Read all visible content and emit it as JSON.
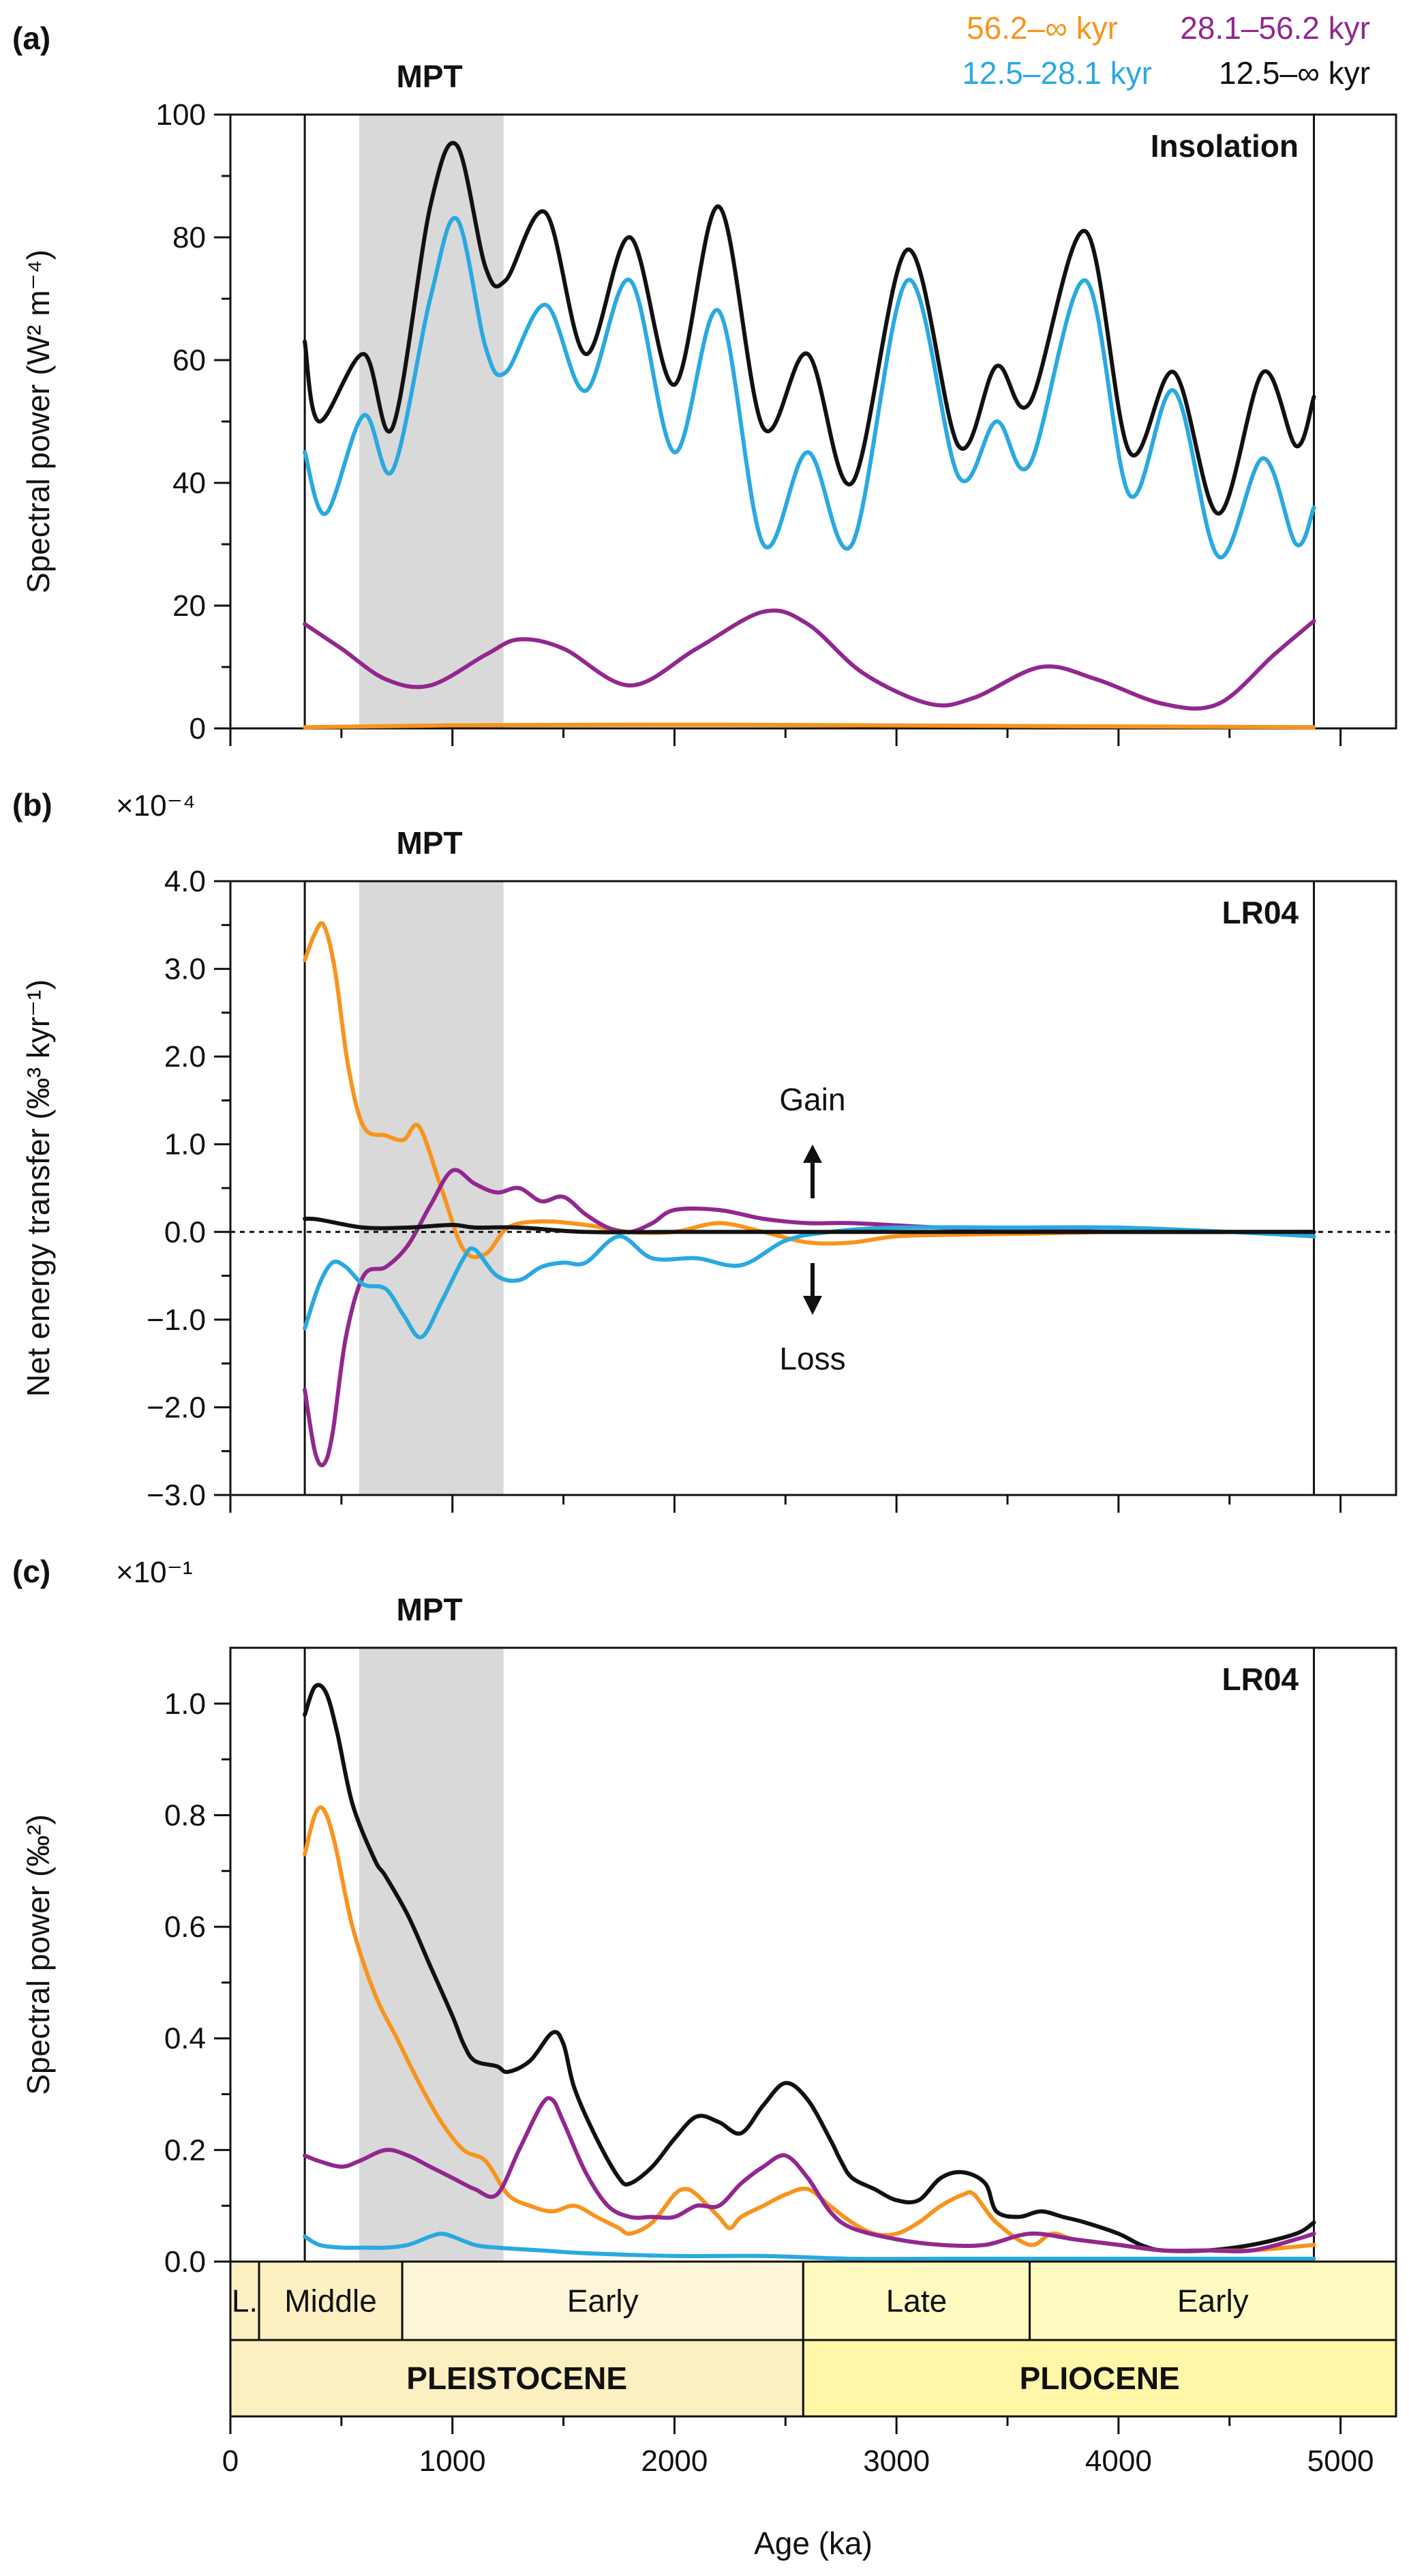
{
  "colors": {
    "orange": "#F7941D",
    "blue": "#29A9E0",
    "purple": "#92278F",
    "black": "#111111",
    "mpt_shade": "#D9D9D9",
    "pleistocene": "#FCEFC2",
    "pleistocene_early": "#FDF5D8",
    "pliocene": "#FFF6A8",
    "pliocene_sub": "#FFFBC0"
  },
  "legend": [
    {
      "label": "56.2–∞ kyr",
      "color": "orange"
    },
    {
      "label": "28.1–56.2 kyr",
      "color": "purple"
    },
    {
      "label": "12.5–28.1 kyr",
      "color": "blue"
    },
    {
      "label": "12.5–∞ kyr",
      "color": "black"
    }
  ],
  "mpt": {
    "label": "MPT",
    "start_ka": 580,
    "end_ka": 1230
  },
  "record_range_ka": [
    335,
    4880
  ],
  "x_axis": {
    "label": "Age (ka)",
    "range": [
      0,
      5250
    ],
    "ticks": [
      0,
      1000,
      2000,
      3000,
      4000,
      5000
    ]
  },
  "timescale": {
    "epochs": [
      {
        "label": "PLEISTOCENE",
        "start": 0,
        "end": 2580
      },
      {
        "label": "PLIOCENE",
        "start": 2580,
        "end": 5250
      }
    ],
    "ages": [
      {
        "label": "L.",
        "start": 0,
        "end": 129
      },
      {
        "label": "Middle",
        "start": 129,
        "end": 774
      },
      {
        "label": "Early",
        "start": 774,
        "end": 2580
      },
      {
        "label": "Late",
        "start": 2580,
        "end": 3600
      },
      {
        "label": "Early",
        "start": 3600,
        "end": 5250
      }
    ]
  },
  "chart_data": [
    {
      "type": "line",
      "panel": "(a)",
      "title": "Insolation",
      "ylabel": "Spectral power (W² m⁻⁴)",
      "ylim": [
        0,
        100
      ],
      "yticks": [
        0,
        20,
        40,
        60,
        80,
        100
      ],
      "ytick_labels": [
        "0",
        "20",
        "40",
        "60",
        "80",
        "100"
      ],
      "scale_label": "",
      "series": [
        {
          "name": "12.5–∞ kyr",
          "color": "black",
          "x": [
            335,
            400,
            600,
            730,
            900,
            1020,
            1150,
            1240,
            1420,
            1600,
            1800,
            2000,
            2200,
            2400,
            2600,
            2800,
            3050,
            3280,
            3450,
            3600,
            3850,
            4050,
            4250,
            4450,
            4650,
            4800,
            4880
          ],
          "y": [
            63,
            50,
            61,
            49,
            85,
            95,
            75,
            73,
            84,
            61,
            80,
            56,
            85,
            49,
            61,
            40,
            78,
            46,
            59,
            53,
            81,
            45,
            58,
            35,
            58,
            46,
            54
          ]
        },
        {
          "name": "12.5–28.1 kyr",
          "color": "blue",
          "x": [
            335,
            430,
            600,
            730,
            900,
            1020,
            1150,
            1240,
            1420,
            1600,
            1800,
            2000,
            2200,
            2400,
            2600,
            2800,
            3050,
            3280,
            3450,
            3600,
            3850,
            4050,
            4250,
            4450,
            4650,
            4800,
            4880
          ],
          "y": [
            45,
            35,
            51,
            42,
            70,
            83,
            62,
            58,
            69,
            55,
            73,
            45,
            68,
            30,
            45,
            30,
            73,
            41,
            50,
            43,
            73,
            38,
            55,
            28,
            44,
            30,
            36
          ]
        },
        {
          "name": "28.1–56.2 kyr",
          "color": "purple",
          "x": [
            335,
            500,
            700,
            900,
            1150,
            1300,
            1500,
            1800,
            2100,
            2400,
            2600,
            2850,
            3150,
            3350,
            3650,
            3900,
            4200,
            4450,
            4700,
            4880
          ],
          "y": [
            17,
            13,
            8,
            7,
            12,
            14.5,
            13,
            7,
            13,
            19,
            17,
            9,
            4,
            5,
            10,
            8,
            4,
            4,
            12,
            17.5
          ]
        },
        {
          "name": "56.2–∞ kyr",
          "color": "orange",
          "x": [
            335,
            1000,
            2200,
            3500,
            4880
          ],
          "y": [
            0.2,
            0.5,
            0.6,
            0.4,
            0.2
          ]
        }
      ]
    },
    {
      "type": "line",
      "panel": "(b)",
      "title": "LR04",
      "ylabel": "Net energy transfer (‰³ kyr⁻¹)",
      "ylim": [
        -3.0,
        4.0
      ],
      "yticks": [
        -3,
        -2,
        -1,
        0,
        1,
        2,
        3,
        4
      ],
      "ytick_labels": [
        "−3.0",
        "−2.0",
        "−1.0",
        "0.0",
        "1.0",
        "2.0",
        "3.0",
        "4.0"
      ],
      "scale_label": "×10⁻⁴",
      "gain_label": "Gain",
      "loss_label": "Loss",
      "series": [
        {
          "name": "56.2–∞ kyr",
          "color": "orange",
          "x": [
            335,
            380,
            420,
            470,
            530,
            600,
            700,
            780,
            850,
            950,
            1050,
            1150,
            1250,
            1400,
            1600,
            1800,
            2000,
            2200,
            2400,
            2600,
            2800,
            3000,
            3300,
            3600,
            4000,
            4400,
            4880
          ],
          "y": [
            3.1,
            3.4,
            3.5,
            3.0,
            1.9,
            1.2,
            1.1,
            1.05,
            1.2,
            0.5,
            -0.2,
            -0.25,
            0.05,
            0.12,
            0.08,
            0.0,
            0.0,
            0.1,
            0.0,
            -0.12,
            -0.12,
            -0.05,
            -0.03,
            -0.02,
            0.0,
            0.0,
            0.0
          ]
        },
        {
          "name": "28.1–56.2 kyr",
          "color": "purple",
          "x": [
            335,
            380,
            420,
            460,
            520,
            600,
            700,
            800,
            900,
            1000,
            1100,
            1200,
            1300,
            1400,
            1500,
            1600,
            1700,
            1800,
            1900,
            2000,
            2200,
            2400,
            2600,
            2800,
            3200,
            3600,
            4000,
            4880
          ],
          "y": [
            -1.8,
            -2.5,
            -2.65,
            -2.3,
            -1.2,
            -0.5,
            -0.4,
            -0.15,
            0.3,
            0.7,
            0.55,
            0.45,
            0.5,
            0.35,
            0.4,
            0.2,
            0.05,
            0.0,
            0.1,
            0.25,
            0.25,
            0.15,
            0.1,
            0.1,
            0.05,
            0.03,
            0.0,
            0.0
          ]
        },
        {
          "name": "12.5–28.1 kyr",
          "color": "blue",
          "x": [
            335,
            400,
            460,
            520,
            600,
            700,
            780,
            860,
            950,
            1050,
            1100,
            1200,
            1300,
            1400,
            1500,
            1600,
            1750,
            1900,
            2100,
            2300,
            2500,
            2700,
            3000,
            3500,
            4000,
            4500,
            4880
          ],
          "y": [
            -1.1,
            -0.6,
            -0.35,
            -0.4,
            -0.6,
            -0.65,
            -0.95,
            -1.2,
            -0.8,
            -0.3,
            -0.2,
            -0.5,
            -0.55,
            -0.4,
            -0.35,
            -0.35,
            -0.05,
            -0.3,
            -0.3,
            -0.38,
            -0.1,
            0.0,
            0.05,
            0.05,
            0.05,
            0.0,
            -0.05
          ]
        },
        {
          "name": "12.5–∞ kyr",
          "color": "black",
          "x": [
            335,
            400,
            600,
            800,
            1000,
            1100,
            1300,
            1600,
            2000,
            2400,
            2800,
            3200,
            4000,
            4880
          ],
          "y": [
            0.15,
            0.14,
            0.05,
            0.05,
            0.08,
            0.05,
            0.05,
            0.0,
            0.0,
            0.0,
            0.0,
            0.0,
            0.0,
            0.0
          ]
        }
      ]
    },
    {
      "type": "line",
      "panel": "(c)",
      "title": "LR04",
      "ylabel": "Spectral power (‰²)",
      "ylim": [
        0,
        1.1
      ],
      "yticks": [
        0,
        0.2,
        0.4,
        0.6,
        0.8,
        1.0
      ],
      "ytick_labels": [
        "0.0",
        "0.2",
        "0.4",
        "0.6",
        "0.8",
        "1.0"
      ],
      "scale_label": "×10⁻¹",
      "series": [
        {
          "name": "12.5–∞ kyr",
          "color": "black",
          "x": [
            335,
            380,
            430,
            480,
            550,
            650,
            700,
            800,
            900,
            1000,
            1050,
            1100,
            1200,
            1250,
            1350,
            1450,
            1500,
            1550,
            1650,
            1750,
            1800,
            1900,
            2000,
            2100,
            2200,
            2300,
            2400,
            2500,
            2600,
            2700,
            2750,
            2800,
            2900,
            3000,
            3100,
            3200,
            3300,
            3400,
            3450,
            3550,
            3650,
            3750,
            3850,
            4000,
            4100,
            4200,
            4400,
            4600,
            4800,
            4880
          ],
          "y": [
            0.98,
            1.03,
            1.02,
            0.95,
            0.82,
            0.72,
            0.69,
            0.62,
            0.53,
            0.44,
            0.39,
            0.36,
            0.35,
            0.34,
            0.36,
            0.41,
            0.39,
            0.31,
            0.22,
            0.15,
            0.14,
            0.17,
            0.22,
            0.26,
            0.25,
            0.23,
            0.28,
            0.32,
            0.29,
            0.22,
            0.18,
            0.15,
            0.13,
            0.11,
            0.11,
            0.15,
            0.16,
            0.14,
            0.09,
            0.08,
            0.09,
            0.08,
            0.07,
            0.05,
            0.03,
            0.02,
            0.02,
            0.03,
            0.05,
            0.07
          ]
        },
        {
          "name": "56.2–∞ kyr",
          "color": "orange",
          "x": [
            335,
            380,
            420,
            470,
            550,
            650,
            750,
            850,
            950,
            1050,
            1150,
            1250,
            1350,
            1450,
            1550,
            1650,
            1750,
            1800,
            1900,
            2000,
            2050,
            2100,
            2200,
            2250,
            2300,
            2400,
            2500,
            2600,
            2700,
            2800,
            2900,
            3000,
            3100,
            3200,
            3300,
            3350,
            3450,
            3600,
            3700,
            3800,
            4000,
            4200,
            4400,
            4600,
            4880
          ],
          "y": [
            0.73,
            0.8,
            0.81,
            0.75,
            0.6,
            0.48,
            0.4,
            0.32,
            0.25,
            0.2,
            0.18,
            0.12,
            0.1,
            0.09,
            0.1,
            0.08,
            0.06,
            0.05,
            0.07,
            0.12,
            0.13,
            0.12,
            0.08,
            0.06,
            0.08,
            0.1,
            0.12,
            0.13,
            0.1,
            0.07,
            0.05,
            0.05,
            0.07,
            0.1,
            0.12,
            0.12,
            0.07,
            0.03,
            0.05,
            0.04,
            0.03,
            0.02,
            0.02,
            0.02,
            0.03
          ]
        },
        {
          "name": "28.1–56.2 kyr",
          "color": "purple",
          "x": [
            335,
            400,
            500,
            580,
            700,
            800,
            900,
            1000,
            1100,
            1200,
            1300,
            1400,
            1450,
            1500,
            1600,
            1700,
            1800,
            1900,
            2000,
            2100,
            2200,
            2300,
            2400,
            2500,
            2600,
            2700,
            2800,
            3000,
            3200,
            3400,
            3600,
            3800,
            4000,
            4200,
            4400,
            4600,
            4800,
            4880
          ],
          "y": [
            0.19,
            0.18,
            0.17,
            0.18,
            0.2,
            0.19,
            0.17,
            0.15,
            0.13,
            0.12,
            0.2,
            0.28,
            0.29,
            0.25,
            0.16,
            0.1,
            0.08,
            0.08,
            0.08,
            0.1,
            0.1,
            0.14,
            0.17,
            0.19,
            0.15,
            0.09,
            0.06,
            0.04,
            0.03,
            0.03,
            0.05,
            0.04,
            0.03,
            0.02,
            0.02,
            0.02,
            0.04,
            0.05
          ]
        },
        {
          "name": "12.5–28.1 kyr",
          "color": "blue",
          "x": [
            335,
            400,
            500,
            600,
            700,
            800,
            900,
            950,
            1000,
            1100,
            1200,
            1400,
            1600,
            2000,
            2400,
            2800,
            3200,
            3600,
            4000,
            4400,
            4880
          ],
          "y": [
            0.045,
            0.03,
            0.025,
            0.025,
            0.025,
            0.03,
            0.045,
            0.05,
            0.045,
            0.03,
            0.025,
            0.02,
            0.015,
            0.01,
            0.01,
            0.005,
            0.005,
            0.005,
            0.005,
            0.005,
            0.005
          ]
        }
      ]
    }
  ]
}
